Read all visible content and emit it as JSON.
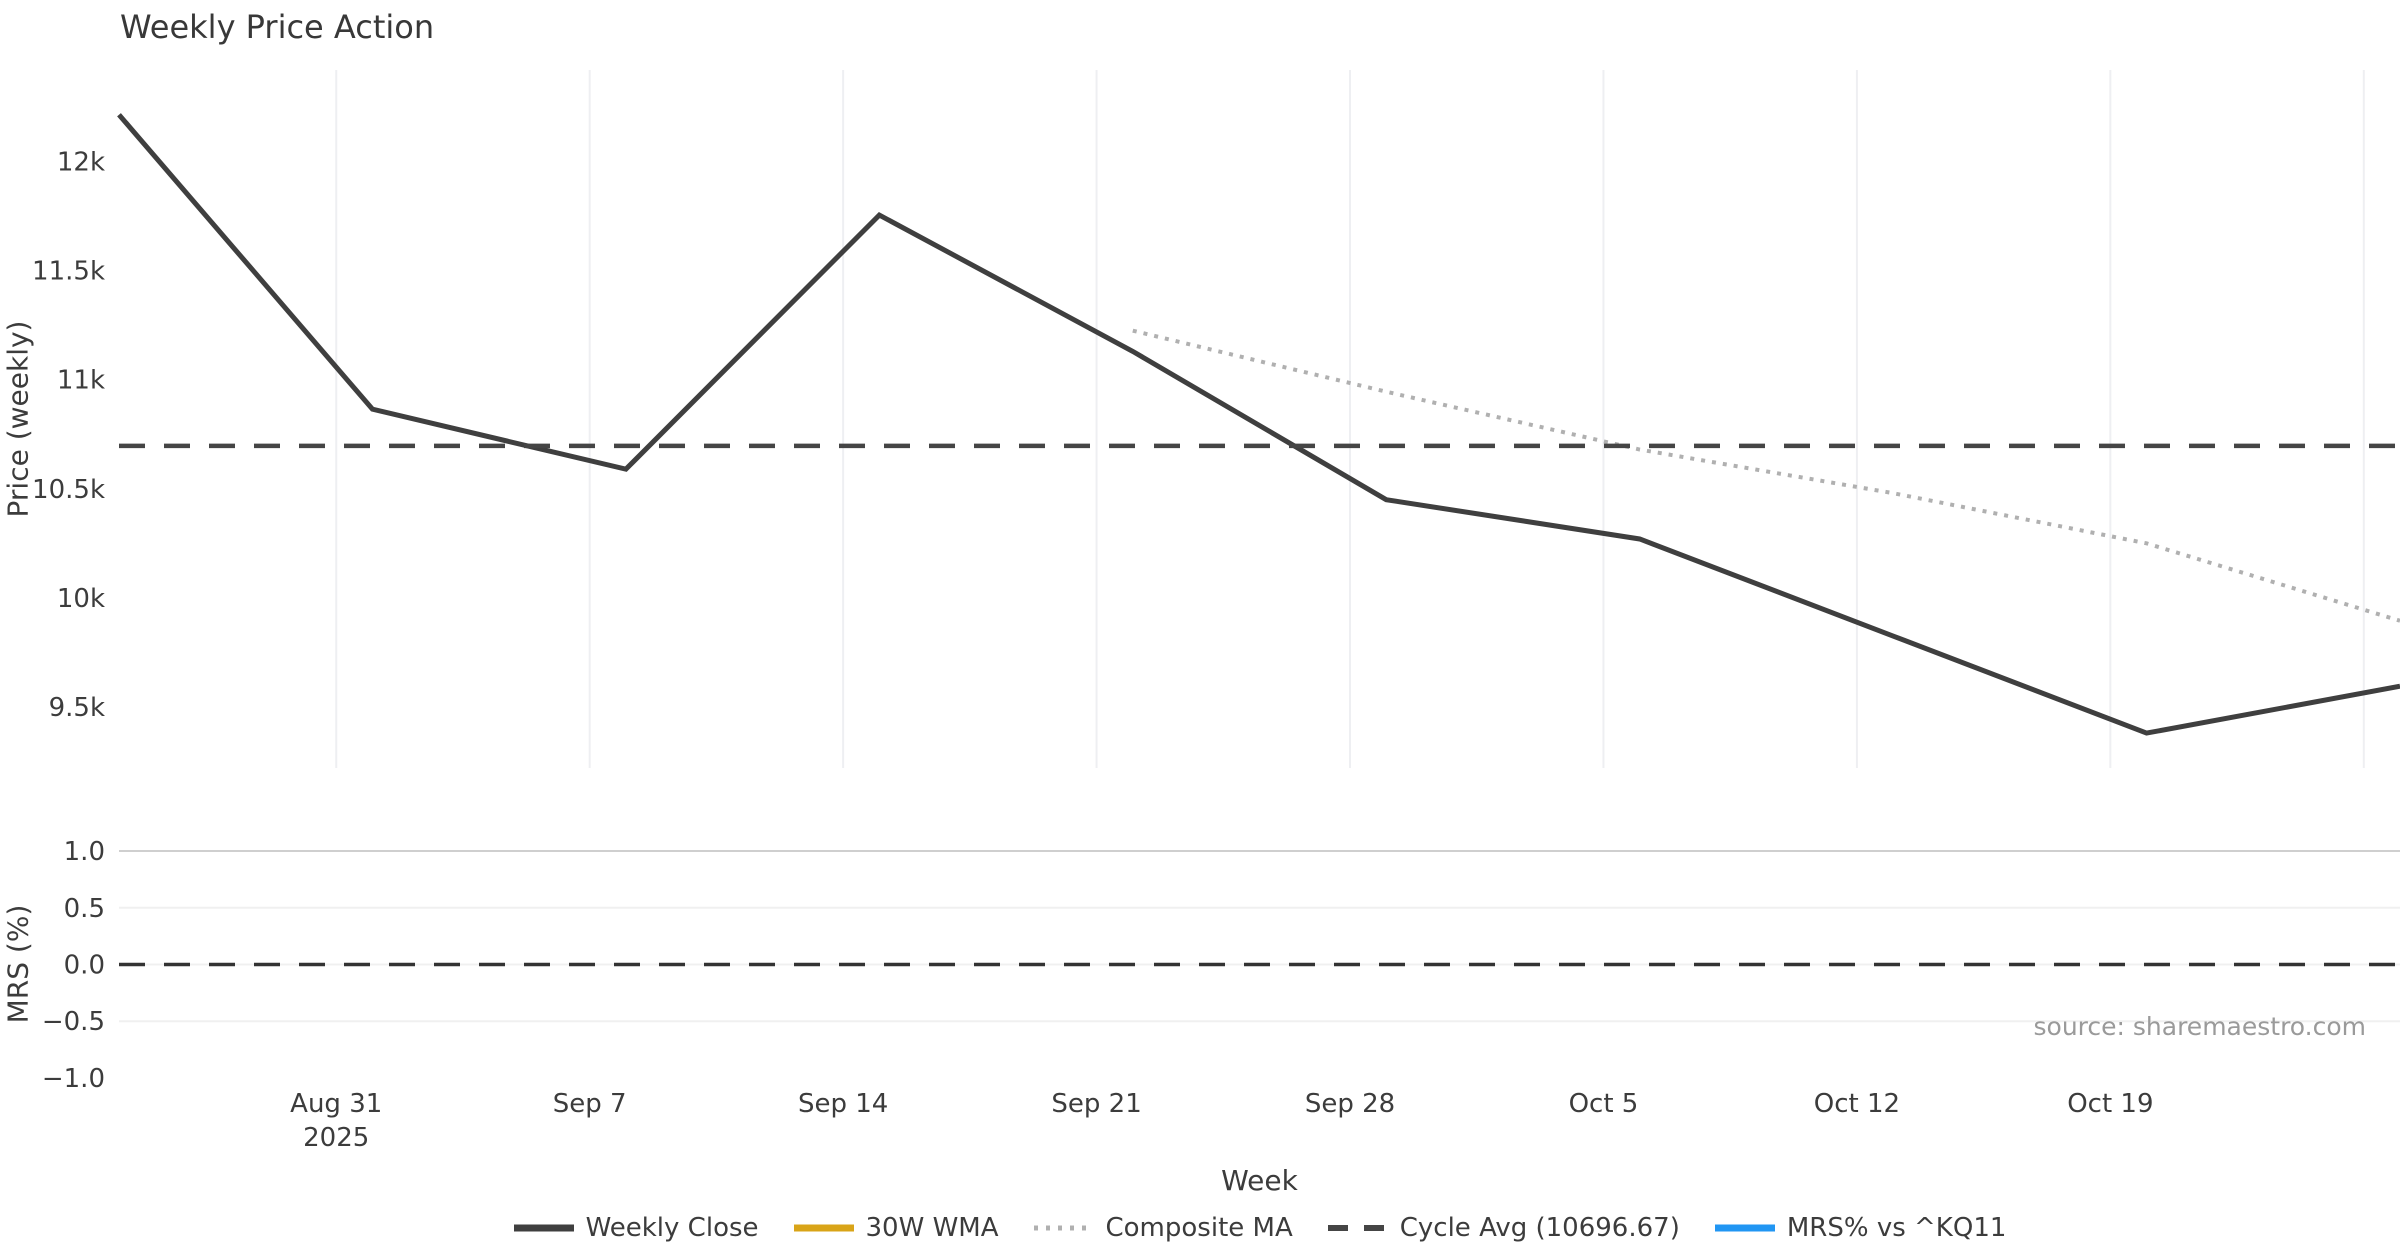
{
  "title": "Weekly Price Action",
  "source_note": "source: sharemaestro.com",
  "colors": {
    "weekly_close": "#3F3F3F",
    "wma30": "#D9A418",
    "composite_ma": "#B0B0B0",
    "cycle_avg": "#454545",
    "mrs": "#2196F3",
    "grid_light": "#EEEFF2",
    "grid_strong": "#CFCFCF",
    "zero_dash": "#333333",
    "tick_text": "#3C3C3C"
  },
  "chart_data": {
    "type": "line",
    "title": "Weekly Price Action",
    "legend_position": "bottom-center",
    "x_axis": {
      "label": "Week",
      "range": [
        "2025-08-25",
        "2025-10-27"
      ],
      "ticks": [
        {
          "date": "2025-08-31",
          "label": "Aug 31",
          "label2": "2025"
        },
        {
          "date": "2025-09-07",
          "label": "Sep 7"
        },
        {
          "date": "2025-09-14",
          "label": "Sep 14"
        },
        {
          "date": "2025-09-21",
          "label": "Sep 21"
        },
        {
          "date": "2025-09-28",
          "label": "Sep 28"
        },
        {
          "date": "2025-10-05",
          "label": "Oct 5"
        },
        {
          "date": "2025-10-12",
          "label": "Oct 12"
        },
        {
          "date": "2025-10-19",
          "label": "Oct 19"
        },
        {
          "date": "2025-10-26",
          "label": ""
        }
      ]
    },
    "price_panel": {
      "ylabel": "Price (weekly)",
      "ylim": [
        9220,
        12420
      ],
      "grid": "vertical-only",
      "yticks": [
        {
          "value": 12000,
          "label": "12k"
        },
        {
          "value": 11500,
          "label": "11.5k"
        },
        {
          "value": 11000,
          "label": "11k"
        },
        {
          "value": 10500,
          "label": "10.5k"
        },
        {
          "value": 10000,
          "label": "10k"
        },
        {
          "value": 9500,
          "label": "9.5k"
        }
      ],
      "series": [
        {
          "id": "weekly-close",
          "name": "Weekly Close",
          "style": "solid",
          "color_key": "weekly_close",
          "x": [
            "2025-08-25",
            "2025-09-01",
            "2025-09-08",
            "2025-09-15",
            "2025-09-22",
            "2025-09-29",
            "2025-10-06",
            "2025-10-13",
            "2025-10-20",
            "2025-10-27"
          ],
          "y": [
            12215,
            10865,
            10590,
            11755,
            11130,
            10450,
            10270,
            9825,
            9380,
            9595
          ]
        },
        {
          "id": "wma-30w",
          "name": "30W WMA",
          "style": "solid",
          "color_key": "wma30",
          "x": [],
          "y": []
        },
        {
          "id": "composite-ma",
          "name": "Composite MA",
          "style": "dotted",
          "color_key": "composite_ma",
          "x": [
            "2025-09-22",
            "2025-09-29",
            "2025-10-06",
            "2025-10-13",
            "2025-10-20",
            "2025-10-27"
          ],
          "y": [
            11225,
            10945,
            10680,
            10480,
            10250,
            9895
          ]
        },
        {
          "id": "cycle-avg",
          "name": "Cycle Avg (10696.67)",
          "style": "dashed",
          "color_key": "cycle_avg",
          "hline": 10696.67
        }
      ]
    },
    "mrs_panel": {
      "ylabel": "MRS (%)",
      "ylim": [
        -1.15,
        1.15
      ],
      "grid": "horizontal-only",
      "zero_line": 0.0,
      "yticks": [
        {
          "value": 1.0,
          "label": "1.0",
          "grid": true,
          "strong": true
        },
        {
          "value": 0.5,
          "label": "0.5",
          "grid": true
        },
        {
          "value": 0.0,
          "label": "0.0",
          "grid": true
        },
        {
          "value": -0.5,
          "label": "−0.5",
          "grid": true
        },
        {
          "value": -1.0,
          "label": "−1.0",
          "grid": false
        }
      ],
      "series": [
        {
          "id": "mrs",
          "name": "MRS% vs ^KQ11",
          "style": "solid",
          "color_key": "mrs",
          "x": [],
          "y": []
        }
      ]
    },
    "legend": [
      {
        "id": "weekly-close",
        "label": "Weekly Close",
        "style": "solid",
        "color_key": "weekly_close"
      },
      {
        "id": "wma-30w",
        "label": "30W WMA",
        "style": "solid",
        "color_key": "wma30"
      },
      {
        "id": "composite-ma",
        "label": "Composite MA",
        "style": "dotted",
        "color_key": "composite_ma"
      },
      {
        "id": "cycle-avg",
        "label": "Cycle Avg (10696.67)",
        "style": "dashed",
        "color_key": "cycle_avg"
      },
      {
        "id": "mrs",
        "label": "MRS% vs ^KQ11",
        "style": "solid",
        "color_key": "mrs"
      }
    ]
  }
}
